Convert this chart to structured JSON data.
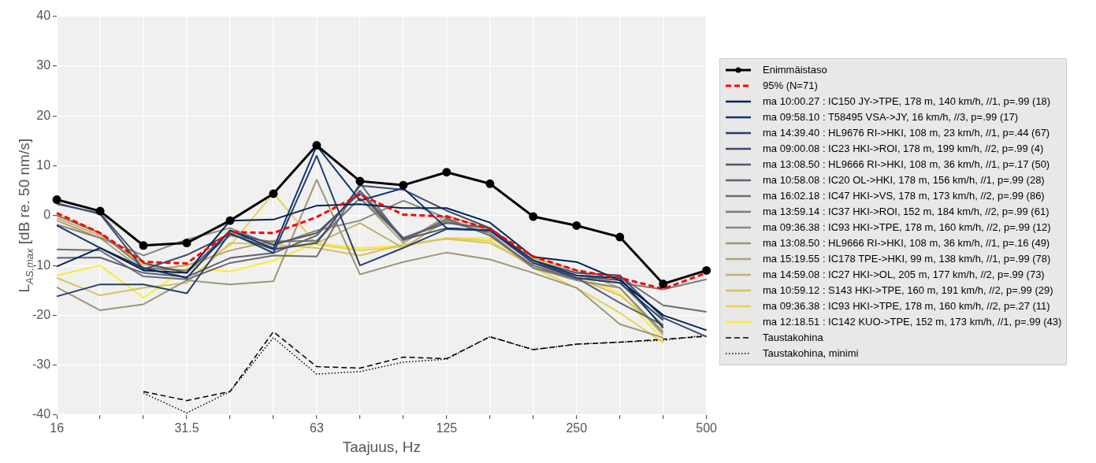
{
  "chart_data": {
    "type": "line",
    "xlabel": "Taajuus, Hz",
    "ylabel": "L$_{AS,max}$ [dB re. 50 nm/s]",
    "categories": [
      "16",
      null,
      null,
      "31.5",
      null,
      null,
      "63",
      null,
      null,
      "125",
      null,
      null,
      "250",
      null,
      null,
      "500"
    ],
    "ylim": [
      -40,
      40
    ],
    "yticks": [
      -40,
      -30,
      -20,
      -10,
      0,
      10,
      20,
      30,
      40
    ],
    "grid": true,
    "legend": "right",
    "marker": "none",
    "line_style": "solid",
    "series": [
      {
        "name": "Enimmäistaso",
        "color": "#000000",
        "marker": "circle",
        "values": [
          3.2,
          0.9,
          -6,
          -5.5,
          -1,
          4.4,
          14.1,
          6.9,
          6.1,
          8.7,
          6.4,
          -0.2,
          -2,
          -4.3,
          -13.7,
          -11
        ]
      },
      {
        "name": "95%  (N=71)",
        "color": "#ff0000",
        "line_style": "dashed",
        "values": [
          0.5,
          -3.5,
          -9.3,
          -9.6,
          -3.3,
          -3.5,
          -0.3,
          4.2,
          0.2,
          -0.2,
          -2.7,
          -8.2,
          -11,
          -12.5,
          -14.7,
          -11.5
        ]
      },
      {
        "name": "ma 10:00.27 : IC150 JY->TPE, 178 m, 140 km/h, //1, p=.99 (18)",
        "color": "#00224e",
        "values": [
          -10.2,
          -6.5,
          -11,
          -11.5,
          -1,
          -0.8,
          2,
          2.3,
          1.5,
          1.5,
          -1.4,
          -8.3,
          -9.3,
          -13,
          -20,
          -23
        ]
      },
      {
        "name": "ma 09:58.10 : T58495 VSA->JY, 16 km/h, //3, p=.99 (17)",
        "color": "#0d3572",
        "values": [
          -2,
          -6.5,
          -10.5,
          -12.5,
          -3,
          -6.6,
          14,
          3,
          5.5,
          -2.5,
          -3,
          -9,
          -12,
          -12.5,
          -22.5,
          null
        ]
      },
      {
        "name": "ma 14:39.40 : HL9676 RI->HKI, 108 m, 23 km/h, //1, p=.44 (67)",
        "color": "#233e6c",
        "values": [
          -16.2,
          -13.8,
          -13.8,
          -15.6,
          -3.5,
          -7.5,
          12,
          -10,
          -6.5,
          -2.7,
          -3,
          -9.5,
          -12.5,
          -13.5,
          -21,
          null
        ]
      },
      {
        "name": "ma 09:00.08 : IC23 HKI->ROI, 178 m, 199 km/h, //2, p=.99 (4)",
        "color": "#3b496c",
        "values": [
          2.5,
          0.3,
          -10.8,
          -7.9,
          -3.7,
          -6.8,
          -5.5,
          6,
          5.2,
          1,
          -2.5,
          -9,
          -11.5,
          -12,
          -20.5,
          -24.3
        ]
      },
      {
        "name": "ma 13:08.50 : HL9666 RI->HKI, 108 m, 36 km/h, //1, p=.17 (50)",
        "color": "#4d546e",
        "values": [
          2.3,
          0.5,
          -9.5,
          -11.5,
          -3,
          -5.8,
          -3.5,
          4.5,
          -4.8,
          -2.5,
          -3,
          -9.5,
          -12,
          -13,
          -20,
          null
        ]
      },
      {
        "name": "ma 10:58.08 : IC20 OL->HKI, 178 m, 156 km/h, //1, p=.99 (28)",
        "color": "#5d5f72",
        "values": [
          -8.5,
          -8.4,
          -11.5,
          -12.3,
          -8.5,
          -7.5,
          -4,
          5,
          -4.5,
          -1.5,
          -2.5,
          -9,
          -12.5,
          -17.5,
          -22,
          null
        ]
      },
      {
        "name": "ma 16:02.18 : IC47 HKI->VS, 178 m, 173 km/h, //2, p=.99 (86)",
        "color": "#6c6b74",
        "values": [
          -6.8,
          -7,
          -12.2,
          -12.8,
          -9.5,
          -8,
          -8.2,
          6.5,
          -5,
          -0.7,
          -4,
          -10,
          -12.8,
          -12.2,
          -18,
          -19.3
        ]
      },
      {
        "name": "ma 13:59.14 : IC37 HKI->ROI, 152 m, 184 km/h, //2, p=.99 (61)",
        "color": "#7c7b78",
        "values": [
          0,
          -3.5,
          -10.5,
          -11,
          -4,
          -5.3,
          -5,
          3.5,
          -4.5,
          -1.2,
          -3.5,
          -10.5,
          -12.5,
          -13.5,
          -14.8,
          -12.8
        ]
      },
      {
        "name": "ma 09:36.38 : IC93 HKI->TPE, 178 m, 160 km/h, //2, p=.99 (12)",
        "color": "#8c8878",
        "values": [
          -1.8,
          -4.5,
          -8,
          -4.8,
          -2.5,
          -6,
          -3,
          -1,
          3,
          -0.5,
          -4,
          -10.5,
          -13,
          -14.5,
          -23.5,
          null
        ]
      },
      {
        "name": "ma 13:08.50 : HL9666 RI->HKI, 108 m, 36 km/h, //1, p=.16 (49)",
        "color": "#9d9676",
        "values": [
          -14.4,
          -19,
          -17.8,
          -13,
          -13.8,
          -13.2,
          7.2,
          -11.8,
          -9.3,
          -7.4,
          -8.8,
          -11.5,
          -14.5,
          -21.8,
          -24.5,
          null
        ]
      },
      {
        "name": "ma 15:19.55 : IC178 TPE->HKI, 99 m, 138 km/h, //1, p=.99 (78)",
        "color": "#aea271",
        "values": [
          -1,
          -4.5,
          -11,
          -10,
          -7,
          -5,
          -5.2,
          3.5,
          -5.5,
          0,
          -2.8,
          -9,
          -12,
          -13.5,
          -22,
          null
        ]
      },
      {
        "name": "ma 14:59.08 : IC27 HKI->OL, 205 m, 177 km/h, //2, p=.99 (73)",
        "color": "#c1b16b",
        "values": [
          -0.5,
          -4,
          -9.5,
          -12.5,
          -3,
          -6.5,
          -5.5,
          -1.5,
          -6.5,
          -1,
          -3,
          -8.5,
          -11,
          -14.5,
          -24,
          null
        ]
      },
      {
        "name": "ma 10:59.12 : S143 HKI->TPE, 160 m, 191 km/h, //2, p=.99 (29)",
        "color": "#d4c260",
        "values": [
          -12.5,
          -16,
          -14.5,
          -13.5,
          -5.5,
          -5.8,
          -6.5,
          -8,
          -5.8,
          -4.7,
          -5.5,
          -10,
          -12.5,
          -16,
          -23,
          null
        ]
      },
      {
        "name": "ma 09:36.38 : IC93 HKI->TPE, 178 m, 160 km/h, //2, p=.27 (11)",
        "color": "#e8d152",
        "values": [
          0.5,
          -3.5,
          -10,
          -11,
          -6,
          4.5,
          -5.8,
          -7,
          -6.2,
          -4.5,
          -5,
          -10.5,
          -14.5,
          -19.5,
          -25.5,
          null
        ]
      },
      {
        "name": "ma 12:18.51 : IC142 KUO->TPE, 152 m, 173 km/h, //1, p=.99 (43)",
        "color": "#fde838",
        "values": [
          -12,
          -10,
          -16.5,
          -10.5,
          -11.2,
          -9,
          -5.5,
          -6.5,
          -6,
          -4.5,
          -4.5,
          -8.5,
          -12,
          -15.5,
          -25,
          null
        ]
      },
      {
        "name": "Taustakohina",
        "color": "#000000",
        "line_style": "dashed",
        "values": [
          null,
          null,
          -35.3,
          -37.1,
          -35.3,
          -23.3,
          -30.3,
          -30.6,
          -28.4,
          -28.7,
          -24.3,
          -26.9,
          -25.8,
          -25.4,
          -24.8,
          -24.2
        ]
      },
      {
        "name": "Taustakohina, minimi",
        "color": "#000000",
        "line_style": "dotted",
        "values": [
          null,
          null,
          -35.6,
          -39.6,
          -35.3,
          -24.5,
          -31.8,
          -31.3,
          -29.4,
          -28.8,
          -24.3,
          -26.9,
          -25.8,
          -25.4,
          -25,
          -24
        ]
      }
    ]
  }
}
